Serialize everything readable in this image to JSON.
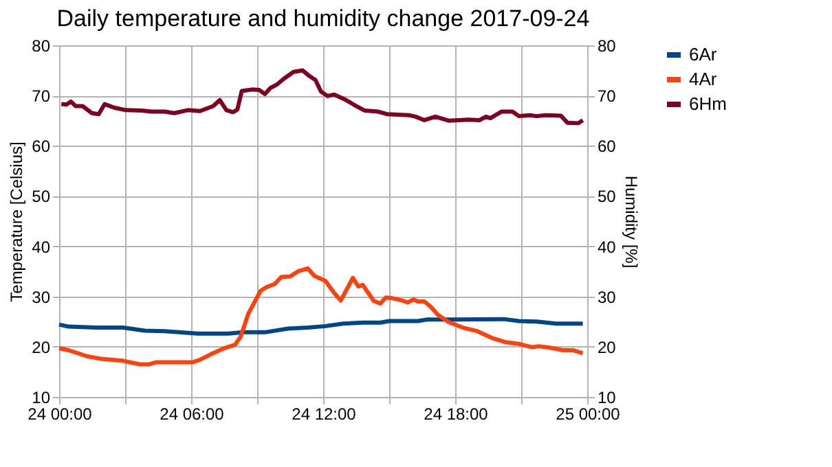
{
  "chart_data": {
    "type": "line",
    "title": "Daily temperature and humidity change 2017-09-24",
    "xlabel": null,
    "ylabel": "Temperature [Celsius]",
    "y2label": "Humidity [%]",
    "xlim": [
      "2017-09-24T00:00",
      "2017-09-25T00:00"
    ],
    "xticks": [
      {
        "value": "2017-09-24T00:00",
        "label": "24 00:00"
      },
      {
        "value": "2017-09-24T03:00",
        "label": null
      },
      {
        "value": "2017-09-24T06:00",
        "label": "24 06:00"
      },
      {
        "value": "2017-09-24T09:00",
        "label": null
      },
      {
        "value": "2017-09-24T12:00",
        "label": "24 12:00"
      },
      {
        "value": "2017-09-24T15:00",
        "label": null
      },
      {
        "value": "2017-09-24T18:00",
        "label": "24 18:00"
      },
      {
        "value": "2017-09-24T21:00",
        "label": null
      },
      {
        "value": "2017-09-25T00:00",
        "label": "25 00:00"
      }
    ],
    "ylim": [
      10,
      80
    ],
    "yticks": [
      10,
      20,
      30,
      40,
      50,
      60,
      70,
      80
    ],
    "y2lim": [
      10,
      80
    ],
    "y2ticks": [
      10,
      20,
      30,
      40,
      50,
      60,
      70,
      80
    ],
    "grid": true,
    "legend": "right",
    "marker": "none",
    "line_style": "solid",
    "series": [
      {
        "name": "6Ar",
        "color": "#004586",
        "x": [
          "2017-09-24T00:00",
          "2017-09-24T00:26",
          "2017-09-24T01:42",
          "2017-09-24T02:54",
          "2017-09-24T03:54",
          "2017-09-24T04:48",
          "2017-09-24T06:18",
          "2017-09-24T07:42",
          "2017-09-24T08:21",
          "2017-09-24T09:24",
          "2017-09-24T10:24",
          "2017-09-24T11:18",
          "2017-09-24T12:06",
          "2017-09-24T12:54",
          "2017-09-24T13:48",
          "2017-09-24T14:36",
          "2017-09-24T15:00",
          "2017-09-24T16:18",
          "2017-09-24T16:42",
          "2017-09-24T17:54",
          "2017-09-24T20:12",
          "2017-09-24T20:54",
          "2017-09-24T21:42",
          "2017-09-24T22:36",
          "2017-09-24T23:48"
        ],
        "values": [
          24.4,
          24.0,
          23.8,
          23.8,
          23.2,
          23.1,
          22.6,
          22.6,
          22.9,
          22.9,
          23.6,
          23.8,
          24.1,
          24.6,
          24.8,
          24.8,
          25.1,
          25.1,
          25.4,
          25.4,
          25.5,
          25.1,
          25.0,
          24.6,
          24.6
        ]
      },
      {
        "name": "4Ar",
        "color": "#ff420e",
        "x": [
          "2017-09-24T00:00",
          "2017-09-24T00:26",
          "2017-09-24T01:16",
          "2017-09-24T01:54",
          "2017-09-24T02:54",
          "2017-09-24T03:40",
          "2017-09-24T04:06",
          "2017-09-24T04:24",
          "2017-09-24T06:04",
          "2017-09-24T06:24",
          "2017-09-24T06:54",
          "2017-09-24T07:30",
          "2017-09-24T08:00",
          "2017-09-24T08:15",
          "2017-09-24T08:36",
          "2017-09-24T08:48",
          "2017-09-24T09:09",
          "2017-09-24T09:24",
          "2017-09-24T09:48",
          "2017-09-24T10:06",
          "2017-09-24T10:30",
          "2017-09-24T10:51",
          "2017-09-24T11:18",
          "2017-09-24T11:36",
          "2017-09-24T12:06",
          "2017-09-24T12:30",
          "2017-09-24T12:48",
          "2017-09-24T13:21",
          "2017-09-24T13:36",
          "2017-09-24T13:48",
          "2017-09-24T14:18",
          "2017-09-24T14:36",
          "2017-09-24T14:51",
          "2017-09-24T15:06",
          "2017-09-24T15:36",
          "2017-09-24T15:51",
          "2017-09-24T16:06",
          "2017-09-24T16:18",
          "2017-09-24T16:36",
          "2017-09-24T16:54",
          "2017-09-24T17:12",
          "2017-09-24T17:42",
          "2017-09-24T18:21",
          "2017-09-24T19:00",
          "2017-09-24T19:42",
          "2017-09-24T20:18",
          "2017-09-24T20:51",
          "2017-09-24T21:30",
          "2017-09-24T21:48",
          "2017-09-24T22:18",
          "2017-09-24T22:54",
          "2017-09-24T23:21",
          "2017-09-24T23:48"
        ],
        "values": [
          19.7,
          19.3,
          18.1,
          17.6,
          17.2,
          16.5,
          16.5,
          16.9,
          16.9,
          17.4,
          18.5,
          19.7,
          20.4,
          22.0,
          26.6,
          28.2,
          31.1,
          31.8,
          32.5,
          33.9,
          34.0,
          35.0,
          35.6,
          34.1,
          33.1,
          30.7,
          29.2,
          33.7,
          32.0,
          32.3,
          29.1,
          28.6,
          29.8,
          29.7,
          29.2,
          28.8,
          29.4,
          29.0,
          29.0,
          27.9,
          26.4,
          24.9,
          23.8,
          23.1,
          21.7,
          20.9,
          20.6,
          19.9,
          20.1,
          19.8,
          19.3,
          19.3,
          18.7
        ]
      },
      {
        "name": "6Hm",
        "color": "#7e0021",
        "axis": "y2",
        "x": [
          "2017-09-24T00:06",
          "2017-09-24T00:20",
          "2017-09-24T00:32",
          "2017-09-24T00:45",
          "2017-09-24T01:04",
          "2017-09-24T01:29",
          "2017-09-24T01:48",
          "2017-09-24T02:04",
          "2017-09-24T02:30",
          "2017-09-24T03:02",
          "2017-09-24T03:46",
          "2017-09-24T04:11",
          "2017-09-24T04:48",
          "2017-09-24T05:14",
          "2017-09-24T05:51",
          "2017-09-24T06:24",
          "2017-09-24T07:00",
          "2017-09-24T07:18",
          "2017-09-24T07:36",
          "2017-09-24T07:54",
          "2017-09-24T08:06",
          "2017-09-24T08:18",
          "2017-09-24T08:46",
          "2017-09-24T09:06",
          "2017-09-24T09:21",
          "2017-09-24T09:36",
          "2017-09-24T09:54",
          "2017-09-24T10:12",
          "2017-09-24T10:39",
          "2017-09-24T11:04",
          "2017-09-24T11:24",
          "2017-09-24T11:39",
          "2017-09-24T11:54",
          "2017-09-24T12:12",
          "2017-09-24T12:30",
          "2017-09-24T13:00",
          "2017-09-24T13:30",
          "2017-09-24T13:54",
          "2017-09-24T14:30",
          "2017-09-24T14:54",
          "2017-09-24T15:54",
          "2017-09-24T16:12",
          "2017-09-24T16:36",
          "2017-09-24T17:06",
          "2017-09-24T17:42",
          "2017-09-24T18:36",
          "2017-09-24T19:06",
          "2017-09-24T19:24",
          "2017-09-24T19:36",
          "2017-09-24T20:06",
          "2017-09-24T20:36",
          "2017-09-24T20:54",
          "2017-09-24T21:24",
          "2017-09-24T21:42",
          "2017-09-24T22:06",
          "2017-09-24T22:48",
          "2017-09-24T23:06",
          "2017-09-24T23:36",
          "2017-09-24T23:48"
        ],
        "values": [
          68.3,
          68.2,
          68.8,
          67.9,
          67.9,
          66.5,
          66.3,
          68.3,
          67.6,
          67.1,
          67.0,
          66.8,
          66.8,
          66.5,
          67.1,
          66.9,
          67.9,
          69.1,
          67.1,
          66.7,
          67.2,
          70.9,
          71.2,
          71.1,
          70.3,
          71.5,
          72.2,
          73.3,
          74.7,
          75.0,
          73.8,
          73.1,
          70.8,
          69.9,
          70.2,
          69.2,
          67.9,
          67.0,
          66.8,
          66.3,
          66.1,
          65.8,
          65.1,
          65.8,
          65.0,
          65.2,
          65.1,
          65.8,
          65.5,
          66.8,
          66.8,
          65.9,
          66.1,
          65.9,
          66.1,
          66.0,
          64.6,
          64.5,
          65.1
        ]
      }
    ]
  }
}
